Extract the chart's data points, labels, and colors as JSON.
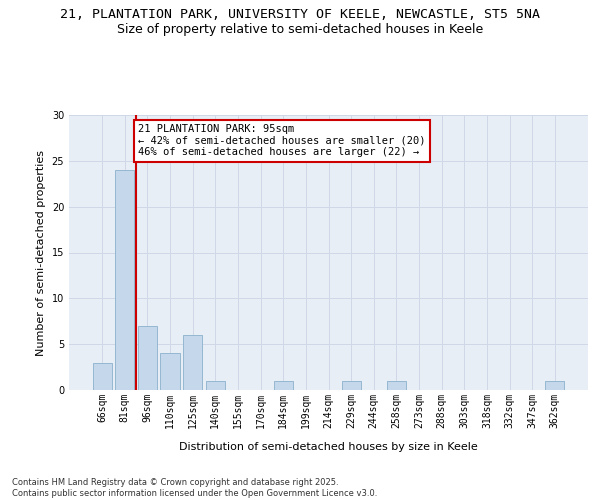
{
  "title_line1": "21, PLANTATION PARK, UNIVERSITY OF KEELE, NEWCASTLE, ST5 5NA",
  "title_line2": "Size of property relative to semi-detached houses in Keele",
  "xlabel": "Distribution of semi-detached houses by size in Keele",
  "ylabel": "Number of semi-detached properties",
  "categories": [
    "66sqm",
    "81sqm",
    "96sqm",
    "110sqm",
    "125sqm",
    "140sqm",
    "155sqm",
    "170sqm",
    "184sqm",
    "199sqm",
    "214sqm",
    "229sqm",
    "244sqm",
    "258sqm",
    "273sqm",
    "288sqm",
    "303sqm",
    "318sqm",
    "332sqm",
    "347sqm",
    "362sqm"
  ],
  "values": [
    3,
    24,
    7,
    4,
    6,
    1,
    0,
    0,
    1,
    0,
    0,
    1,
    0,
    1,
    0,
    0,
    0,
    0,
    0,
    0,
    1
  ],
  "bar_color": "#c5d8eb",
  "bar_edge_color": "#8ab0cc",
  "grid_color": "#d0d8e8",
  "background_color": "#e8eef5",
  "annotation_text": "21 PLANTATION PARK: 95sqm\n← 42% of semi-detached houses are smaller (20)\n46% of semi-detached houses are larger (22) →",
  "annotation_box_color": "#ffffff",
  "annotation_border_color": "#cc0000",
  "vline_color": "#cc0000",
  "ylim": [
    0,
    30
  ],
  "yticks": [
    0,
    5,
    10,
    15,
    20,
    25,
    30
  ],
  "footer_text": "Contains HM Land Registry data © Crown copyright and database right 2025.\nContains public sector information licensed under the Open Government Licence v3.0.",
  "title_fontsize": 9.5,
  "subtitle_fontsize": 9,
  "axis_label_fontsize": 8,
  "tick_fontsize": 7,
  "annotation_fontsize": 7.5,
  "footer_fontsize": 6
}
